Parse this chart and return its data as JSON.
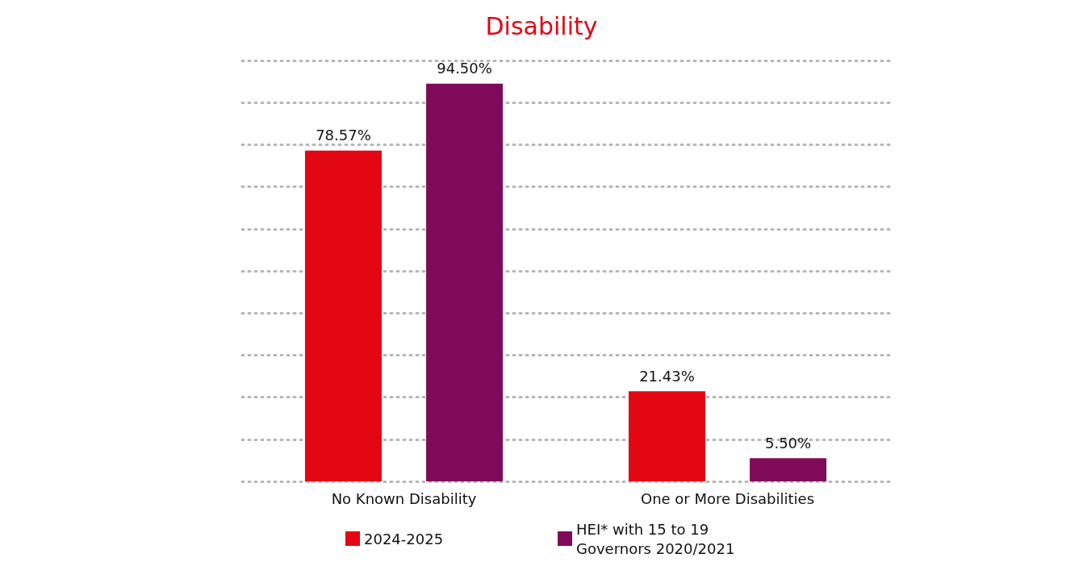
{
  "chart_data": {
    "type": "bar",
    "title": "Disability",
    "categories": [
      "No Known Disability",
      "One or More Disabilities"
    ],
    "series": [
      {
        "name": "2024-2025",
        "color": "#e30613",
        "values": [
          78.57,
          21.43
        ],
        "value_labels": [
          "78.57%",
          "21.43%"
        ]
      },
      {
        "name": "HEI* with 15 to 19 Governors 2020/2021",
        "color": "#7f0a5a",
        "values": [
          94.5,
          5.5
        ],
        "value_labels": [
          "94.50%",
          "5.50%"
        ]
      }
    ],
    "ylim": [
      0,
      100
    ],
    "yticks": [
      {
        "value": 0,
        "label": null
      },
      {
        "value": 10,
        "label": null
      },
      {
        "value": 20,
        "label": null
      },
      {
        "value": 30,
        "label": null
      },
      {
        "value": 40,
        "label": null
      },
      {
        "value": 50,
        "label": null
      },
      {
        "value": 60,
        "label": null
      },
      {
        "value": 70,
        "label": null
      },
      {
        "value": 80,
        "label": null
      },
      {
        "value": 90,
        "label": null
      },
      {
        "value": 100,
        "label": null
      }
    ],
    "grid": "y",
    "legend": "bottom",
    "tick_labels": "x"
  }
}
